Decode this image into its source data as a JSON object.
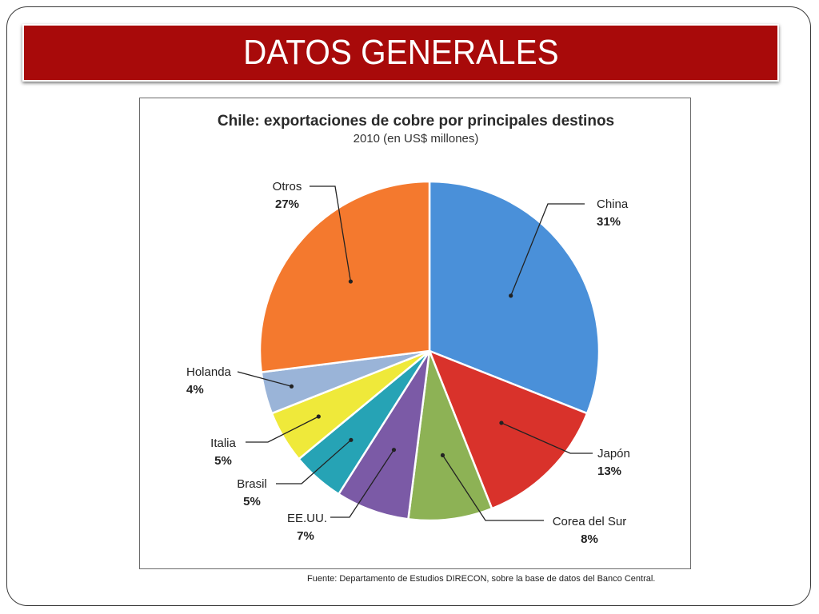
{
  "slide": {
    "title": "DATOS GENERALES",
    "source": "Fuente: Departamento de Estudios DIRECON, sobre la base de datos del Banco Central."
  },
  "chart_data": {
    "type": "pie",
    "title": "Chile: exportaciones de cobre por principales destinos",
    "subtitle": "2010 (en US$ millones)",
    "slices": [
      {
        "name": "China",
        "value": 31,
        "label": "31%",
        "color": "#4a90d9"
      },
      {
        "name": "Japón",
        "value": 13,
        "label": "13%",
        "color": "#d9322b"
      },
      {
        "name": "Corea del Sur",
        "value": 8,
        "label": "8%",
        "color": "#8db255"
      },
      {
        "name": "EE.UU.",
        "value": 7,
        "label": "7%",
        "color": "#7b5aa6"
      },
      {
        "name": "Brasil",
        "value": 5,
        "label": "5%",
        "color": "#26a3b5"
      },
      {
        "name": "Italia",
        "value": 5,
        "label": "5%",
        "color": "#efe93a"
      },
      {
        "name": "Holanda",
        "value": 4,
        "label": "4%",
        "color": "#9ab4d8"
      },
      {
        "name": "Otros",
        "value": 27,
        "label": "27%",
        "color": "#f4792e"
      }
    ]
  }
}
